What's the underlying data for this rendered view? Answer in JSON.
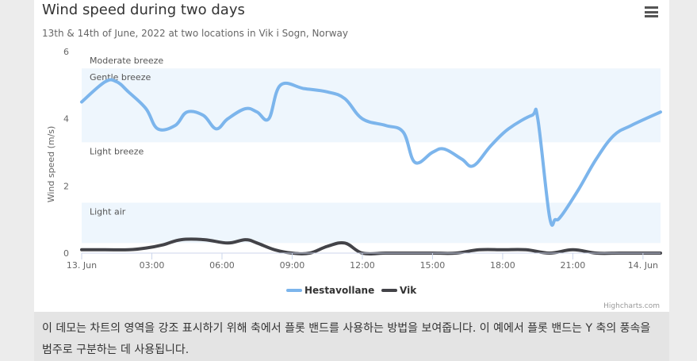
{
  "chart": {
    "title": "Wind speed during two days",
    "subtitle": "13th & 14th of June, 2022 at two locations in Vik i Sogn, Norway",
    "credits": "Highcharts.com",
    "menu_icon": "hamburger-menu-icon"
  },
  "caption": "이 데모는 차트의 영역을 강조 표시하기 위해 축에서 플롯 밴드를 사용하는 방법을 보여줍니다. 이 예에서 플롯 밴드는 Y 축의 풍속을 범주로 구분하는 데 사용됩니다.",
  "chart_data": {
    "type": "line",
    "smooth": true,
    "ylabel": "Wind speed (m/s)",
    "ylim": [
      0,
      6
    ],
    "yticks": [
      "0",
      "2",
      "4",
      "6"
    ],
    "xlim_hours": [
      0,
      24.75
    ],
    "xticks": [
      {
        "hour": 0,
        "label": "13. Jun"
      },
      {
        "hour": 3,
        "label": "03:00"
      },
      {
        "hour": 6,
        "label": "06:00"
      },
      {
        "hour": 9,
        "label": "09:00"
      },
      {
        "hour": 12,
        "label": "12:00"
      },
      {
        "hour": 15,
        "label": "15:00"
      },
      {
        "hour": 18,
        "label": "18:00"
      },
      {
        "hour": 21,
        "label": "21:00"
      },
      {
        "hour": 24,
        "label": "14. Jun"
      }
    ],
    "plot_bands": [
      {
        "from": 0.3,
        "to": 1.5,
        "label": "Light air",
        "color": "#eef6fd"
      },
      {
        "from": 1.5,
        "to": 3.3,
        "label": "Light breeze",
        "color": "#ffffff"
      },
      {
        "from": 3.3,
        "to": 5.5,
        "label": "Gentle breeze",
        "color": "#eef6fd"
      },
      {
        "from": 5.5,
        "to": 6.0,
        "label": "Moderate breeze",
        "color": "#ffffff"
      }
    ],
    "legend_position": "bottom-center",
    "series": [
      {
        "name": "Hestavollane",
        "color": "#7cb5ec",
        "x": [
          0,
          1,
          1.5,
          2,
          2.75,
          3.25,
          4,
          4.5,
          5.2,
          5.75,
          6.25,
          7,
          7.5,
          8,
          8.5,
          9.5,
          10.5,
          11.25,
          12,
          13,
          13.75,
          14.25,
          15,
          15.5,
          16.25,
          16.75,
          17.5,
          18.25,
          19.25,
          19.5,
          20,
          20.25,
          20.5,
          21.25,
          22,
          22.75,
          23.5,
          24.75
        ],
        "y": [
          4.5,
          5.1,
          5.1,
          4.8,
          4.3,
          3.7,
          3.8,
          4.2,
          4.1,
          3.7,
          4.0,
          4.3,
          4.2,
          4.0,
          5.0,
          4.9,
          4.8,
          4.6,
          4.0,
          3.8,
          3.6,
          2.7,
          3.0,
          3.1,
          2.8,
          2.6,
          3.2,
          3.7,
          4.1,
          4.0,
          1.1,
          1.0,
          1.1,
          1.9,
          2.8,
          3.5,
          3.8,
          4.2
        ]
      },
      {
        "name": "Vik",
        "color": "#434348",
        "x": [
          0,
          1,
          2,
          2.75,
          3.5,
          4.25,
          5.25,
          6.25,
          7,
          7.5,
          8.25,
          9,
          9.75,
          10.5,
          11.25,
          12,
          13,
          14,
          15,
          16,
          17,
          18,
          19,
          20,
          21,
          22,
          23,
          24,
          24.75
        ],
        "y": [
          0.1,
          0.1,
          0.1,
          0.15,
          0.25,
          0.4,
          0.4,
          0.3,
          0.4,
          0.3,
          0.1,
          0.0,
          0.0,
          0.2,
          0.3,
          0.0,
          0.0,
          0.0,
          0.0,
          0.0,
          0.1,
          0.1,
          0.1,
          0.0,
          0.1,
          0.0,
          0.0,
          0.0,
          0.0
        ]
      }
    ]
  }
}
